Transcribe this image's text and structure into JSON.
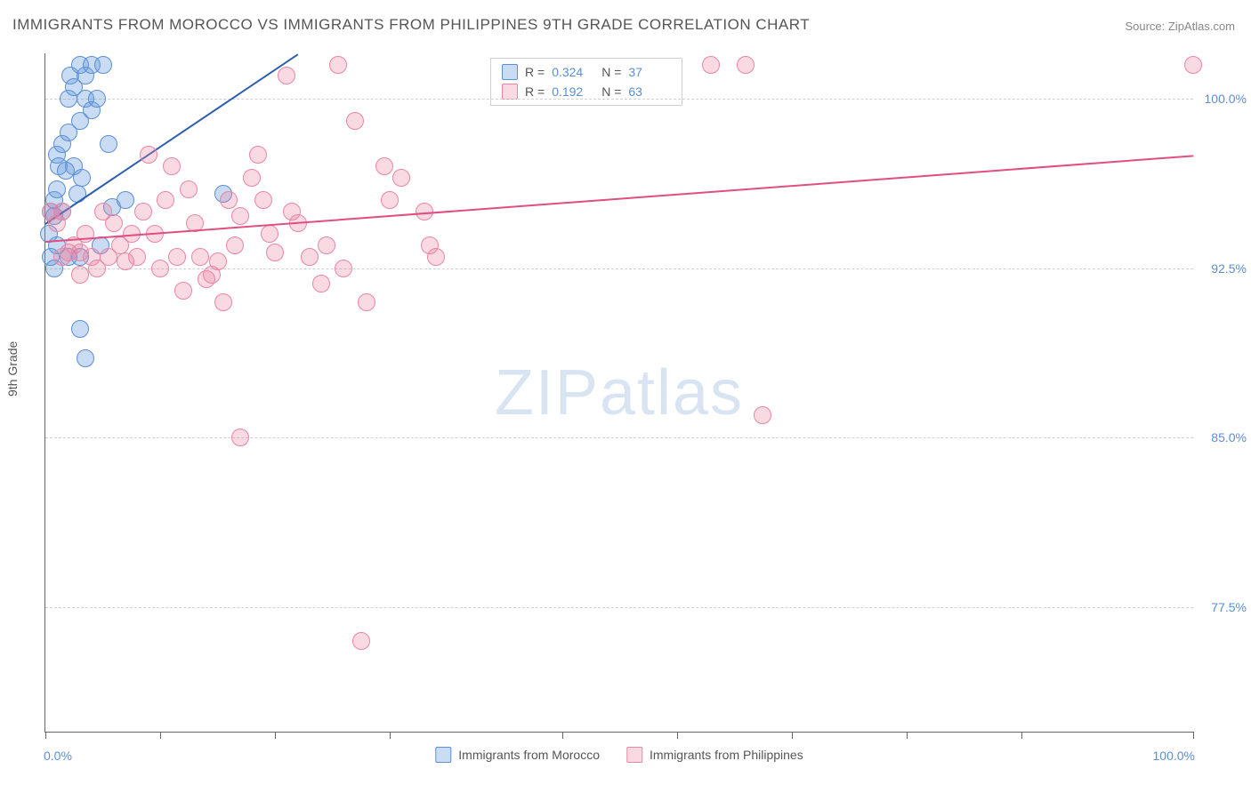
{
  "title": "IMMIGRANTS FROM MOROCCO VS IMMIGRANTS FROM PHILIPPINES 9TH GRADE CORRELATION CHART",
  "source_label": "Source: ZipAtlas.com",
  "watermark_a": "ZIP",
  "watermark_b": "atlas",
  "y_axis_title": "9th Grade",
  "chart": {
    "type": "scatter",
    "xlim": [
      0,
      100
    ],
    "ylim": [
      72,
      102
    ],
    "y_ticks": [
      77.5,
      85.0,
      92.5,
      100.0
    ],
    "y_tick_labels": [
      "77.5%",
      "85.0%",
      "92.5%",
      "100.0%"
    ],
    "x_ticks": [
      0,
      10,
      20,
      30,
      45,
      55,
      65,
      75,
      85,
      100
    ],
    "x_axis_left_label": "0.0%",
    "x_axis_right_label": "100.0%",
    "background_color": "#ffffff",
    "grid_color": "#d0d0d0",
    "marker_radius": 9,
    "series": [
      {
        "name": "Immigrants from Morocco",
        "color_fill": "rgba(100,155,220,0.35)",
        "color_stroke": "#5b8fd6",
        "trend_color": "#2d5fb0",
        "trend": {
          "x1": 0,
          "y1": 94.5,
          "x2": 22,
          "y2": 102
        },
        "R": "0.324",
        "N": "37",
        "points": [
          [
            0.5,
            95.0
          ],
          [
            0.8,
            94.8
          ],
          [
            0.8,
            95.5
          ],
          [
            1.0,
            96.0
          ],
          [
            1.0,
            97.5
          ],
          [
            1.0,
            93.5
          ],
          [
            1.2,
            97.0
          ],
          [
            1.5,
            98.0
          ],
          [
            1.5,
            95.0
          ],
          [
            2.0,
            100.0
          ],
          [
            2.0,
            98.5
          ],
          [
            2.2,
            101.0
          ],
          [
            2.5,
            100.5
          ],
          [
            2.5,
            97.0
          ],
          [
            3.0,
            101.5
          ],
          [
            3.0,
            99.0
          ],
          [
            3.2,
            96.5
          ],
          [
            3.5,
            101.0
          ],
          [
            3.5,
            100.0
          ],
          [
            4.0,
            101.5
          ],
          [
            4.0,
            99.5
          ],
          [
            4.5,
            100.0
          ],
          [
            5.0,
            101.5
          ],
          [
            5.5,
            98.0
          ],
          [
            5.8,
            95.2
          ],
          [
            2.0,
            93.0
          ],
          [
            3.0,
            93.0
          ],
          [
            0.5,
            93.0
          ],
          [
            0.3,
            94.0
          ],
          [
            0.8,
            92.5
          ],
          [
            3.0,
            89.8
          ],
          [
            3.5,
            88.5
          ],
          [
            7.0,
            95.5
          ],
          [
            15.5,
            95.8
          ],
          [
            4.8,
            93.5
          ],
          [
            1.8,
            96.8
          ],
          [
            2.8,
            95.8
          ]
        ]
      },
      {
        "name": "Immigrants from Philippines",
        "color_fill": "rgba(235,130,160,0.30)",
        "color_stroke": "#e986a6",
        "trend_color": "#e04e82",
        "trend": {
          "x1": 0,
          "y1": 93.7,
          "x2": 100,
          "y2": 97.5
        },
        "R": "0.192",
        "N": "63",
        "points": [
          [
            0.5,
            95.0
          ],
          [
            1.0,
            94.5
          ],
          [
            1.5,
            95.0
          ],
          [
            1.5,
            93.0
          ],
          [
            2.0,
            93.2
          ],
          [
            2.5,
            93.5
          ],
          [
            3.0,
            92.2
          ],
          [
            3.0,
            93.2
          ],
          [
            3.5,
            94.0
          ],
          [
            4.0,
            93.0
          ],
          [
            4.5,
            92.5
          ],
          [
            5.0,
            95.0
          ],
          [
            5.5,
            93.0
          ],
          [
            6.0,
            94.5
          ],
          [
            6.5,
            93.5
          ],
          [
            7.0,
            92.8
          ],
          [
            7.5,
            94.0
          ],
          [
            8.0,
            93.0
          ],
          [
            8.5,
            95.0
          ],
          [
            9.0,
            97.5
          ],
          [
            9.5,
            94.0
          ],
          [
            10.0,
            92.5
          ],
          [
            10.5,
            95.5
          ],
          [
            11.0,
            97.0
          ],
          [
            11.5,
            93.0
          ],
          [
            12.0,
            91.5
          ],
          [
            12.5,
            96.0
          ],
          [
            13.0,
            94.5
          ],
          [
            13.5,
            93.0
          ],
          [
            14.0,
            92.0
          ],
          [
            14.5,
            92.2
          ],
          [
            15.0,
            92.8
          ],
          [
            15.5,
            91.0
          ],
          [
            16.0,
            95.5
          ],
          [
            16.5,
            93.5
          ],
          [
            17.0,
            94.8
          ],
          [
            18.0,
            96.5
          ],
          [
            18.5,
            97.5
          ],
          [
            19.0,
            95.5
          ],
          [
            19.5,
            94.0
          ],
          [
            20.0,
            93.2
          ],
          [
            21.0,
            101.0
          ],
          [
            21.5,
            95.0
          ],
          [
            22.0,
            94.5
          ],
          [
            23.0,
            93.0
          ],
          [
            24.0,
            91.8
          ],
          [
            24.5,
            93.5
          ],
          [
            25.5,
            101.5
          ],
          [
            26.0,
            92.5
          ],
          [
            27.0,
            99.0
          ],
          [
            28.0,
            91.0
          ],
          [
            29.5,
            97.0
          ],
          [
            30.0,
            95.5
          ],
          [
            31.0,
            96.5
          ],
          [
            33.0,
            95.0
          ],
          [
            33.5,
            93.5
          ],
          [
            34.0,
            93.0
          ],
          [
            17.0,
            85.0
          ],
          [
            27.5,
            76.0
          ],
          [
            58.0,
            101.5
          ],
          [
            61.0,
            101.5
          ],
          [
            62.5,
            86.0
          ],
          [
            100.0,
            101.5
          ]
        ]
      }
    ]
  },
  "legend_bottom": [
    "Immigrants from Morocco",
    "Immigrants from Philippines"
  ]
}
